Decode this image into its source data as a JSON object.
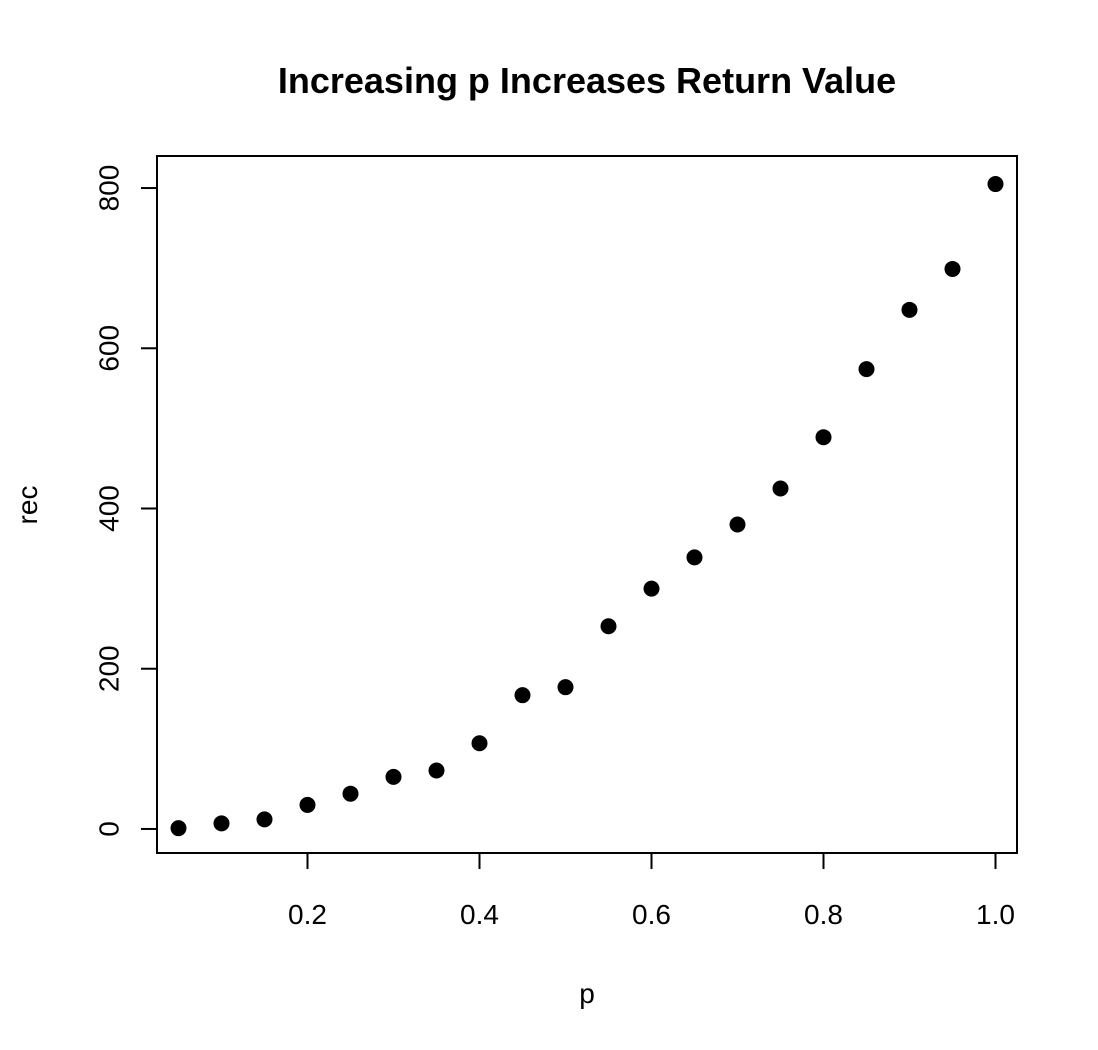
{
  "chart_data": {
    "type": "scatter",
    "title": "Increasing p Increases Return Value",
    "xlabel": "p",
    "ylabel": "rec",
    "xlim": [
      0.025,
      1.025
    ],
    "ylim": [
      -30,
      840
    ],
    "x_ticks": [
      0.2,
      0.4,
      0.6,
      0.8,
      1.0
    ],
    "x_tick_labels": [
      "0.2",
      "0.4",
      "0.6",
      "0.8",
      "1.0"
    ],
    "y_ticks": [
      0,
      200,
      400,
      600,
      800
    ],
    "y_tick_labels": [
      "0",
      "200",
      "400",
      "600",
      "800"
    ],
    "grid": false,
    "marker_color": "#000000",
    "series": [
      {
        "x": [
          0.05,
          0.1,
          0.15,
          0.2,
          0.25,
          0.3,
          0.35,
          0.4,
          0.45,
          0.5,
          0.55,
          0.6,
          0.65,
          0.7,
          0.75,
          0.8,
          0.85,
          0.9,
          0.95,
          1.0
        ],
        "y": [
          1,
          7,
          12,
          30,
          44,
          65,
          73,
          107,
          167,
          177,
          253,
          300,
          339,
          380,
          425,
          489,
          574,
          648,
          699,
          805
        ]
      }
    ]
  }
}
